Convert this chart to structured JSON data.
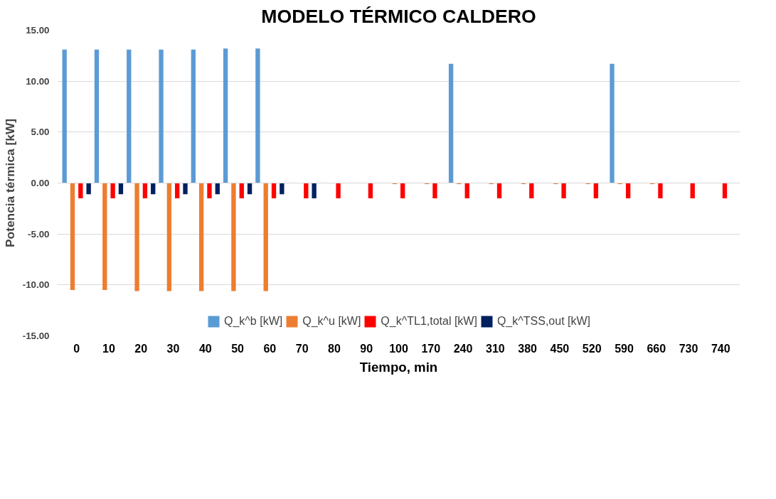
{
  "chart_data": {
    "type": "bar",
    "title": "MODELO TÉRMICO CALDERO",
    "xlabel": "Tiempo, min",
    "ylabel": "Potencia térmica [kW]",
    "categories": [
      "0",
      "10",
      "20",
      "30",
      "40",
      "50",
      "60",
      "70",
      "80",
      "90",
      "100",
      "170",
      "240",
      "310",
      "380",
      "450",
      "520",
      "590",
      "660",
      "730",
      "740"
    ],
    "series": [
      {
        "name": "Q_k^b [kW]",
        "color": "#5b9bd5",
        "values": [
          13.1,
          13.1,
          13.1,
          13.1,
          13.1,
          13.2,
          13.2,
          0,
          0,
          0,
          0,
          0,
          11.7,
          0,
          0,
          0,
          0,
          11.7,
          0,
          0,
          0
        ]
      },
      {
        "name": "Q_k^u [kW]",
        "color": "#ed7d31",
        "values": [
          -10.5,
          -10.5,
          -10.6,
          -10.6,
          -10.6,
          -10.6,
          -10.6,
          0,
          0,
          0,
          -0.1,
          -0.1,
          -0.1,
          -0.1,
          -0.1,
          -0.1,
          -0.1,
          -0.1,
          -0.1,
          0,
          0
        ]
      },
      {
        "name": "Q_k^TL1,total [kW]",
        "color": "#ff0000",
        "values": [
          -1.5,
          -1.5,
          -1.5,
          -1.5,
          -1.5,
          -1.5,
          -1.5,
          -1.5,
          -1.5,
          -1.5,
          -1.5,
          -1.5,
          -1.5,
          -1.5,
          -1.5,
          -1.5,
          -1.5,
          -1.5,
          -1.5,
          -1.5,
          -1.5
        ]
      },
      {
        "name": "Q_k^TSS,out [kW]",
        "color": "#002060",
        "values": [
          -1.1,
          -1.1,
          -1.1,
          -1.1,
          -1.1,
          -1.1,
          -1.1,
          -1.5,
          0,
          0,
          0,
          0,
          0,
          0,
          0,
          0,
          0,
          0,
          0,
          0,
          0
        ]
      }
    ],
    "ylim": [
      -15,
      15
    ],
    "yticks": [
      {
        "value": -15,
        "label": "-15.00"
      },
      {
        "value": -10,
        "label": "-10.00"
      },
      {
        "value": -5,
        "label": "-5.00"
      },
      {
        "value": 0,
        "label": "0.00"
      },
      {
        "value": 5,
        "label": "5.00"
      },
      {
        "value": 10,
        "label": "10.00"
      },
      {
        "value": 15,
        "label": "15.00"
      }
    ],
    "grid": "y",
    "legend": "bottom"
  }
}
